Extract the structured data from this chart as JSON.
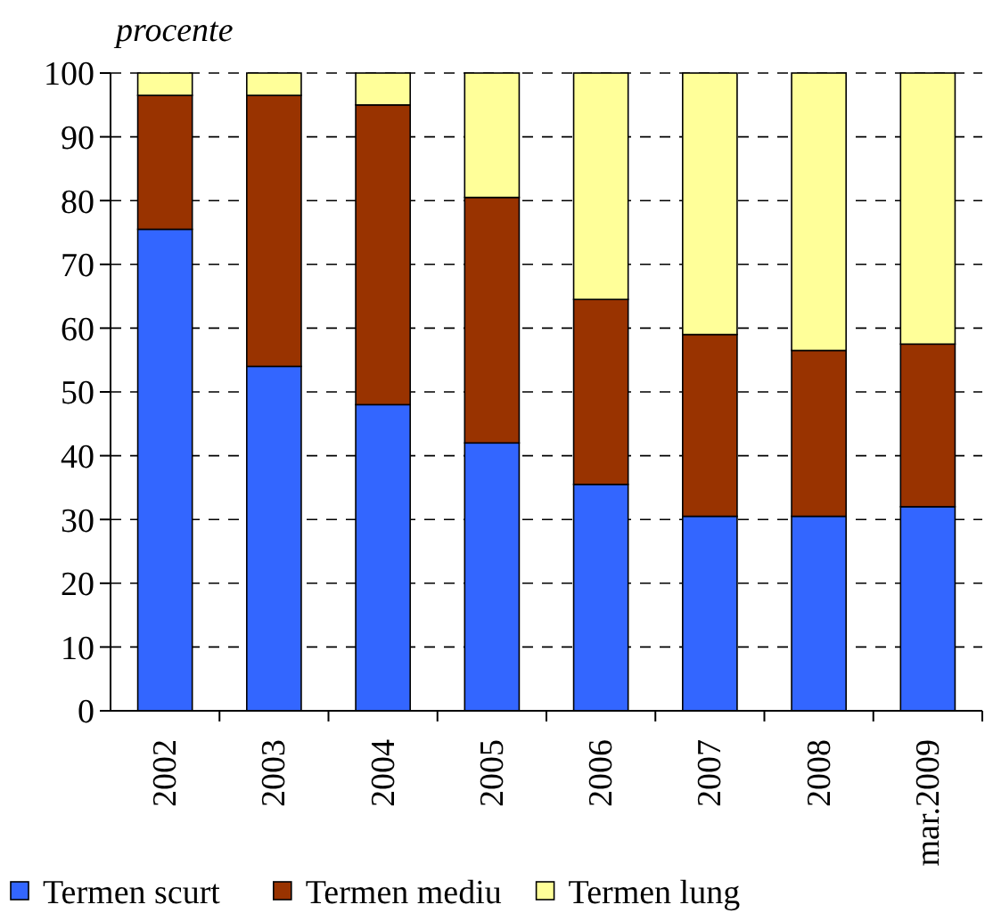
{
  "chart_data": {
    "type": "bar",
    "stacked": true,
    "ylabel": "procente",
    "categories": [
      "2002",
      "2003",
      "2004",
      "2005",
      "2006",
      "2007",
      "2008",
      "mar.2009"
    ],
    "series": [
      {
        "name": "Termen scurt",
        "color": "#3366ff",
        "values": [
          75.5,
          54,
          48,
          42,
          35.5,
          30.5,
          30.5,
          32
        ]
      },
      {
        "name": "Termen mediu",
        "color": "#993300",
        "values": [
          21,
          42.5,
          47,
          38.5,
          29,
          28.5,
          26,
          25.5
        ]
      },
      {
        "name": "Termen lung",
        "color": "#ffff99",
        "values": [
          3.5,
          3.5,
          5,
          19.5,
          35.5,
          41,
          43.5,
          42.5
        ]
      }
    ],
    "ylim": [
      0,
      100
    ],
    "yticks": [
      0,
      10,
      20,
      30,
      40,
      50,
      60,
      70,
      80,
      90,
      100
    ],
    "grid": "y",
    "legend": "bottom"
  }
}
